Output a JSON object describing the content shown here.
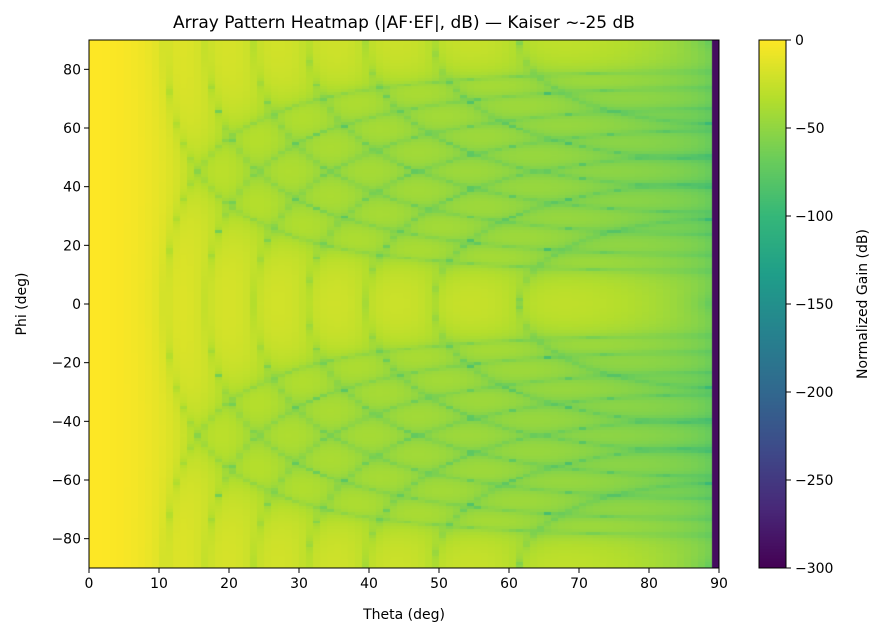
{
  "chart_data": {
    "type": "heatmap",
    "title": "Array Pattern Heatmap (|AF·EF|, dB) — Kaiser ~-25 dB",
    "xlabel": "Theta (deg)",
    "ylabel": "Phi (deg)",
    "xlim": [
      0,
      90
    ],
    "ylim": [
      -90,
      90
    ],
    "xticks": [
      "0",
      "10",
      "20",
      "30",
      "40",
      "50",
      "60",
      "70",
      "80",
      "90"
    ],
    "yticks": [
      "80",
      "60",
      "40",
      "20",
      "0",
      "−20",
      "−40",
      "−60",
      "−80"
    ],
    "colorbar": {
      "label": "Normalized Gain (dB)",
      "range": [
        -300,
        0
      ],
      "ticks": [
        "0",
        "−50",
        "−100",
        "−150",
        "−200",
        "−250",
        "−300"
      ],
      "colormap": "viridis"
    },
    "grid": false
  }
}
